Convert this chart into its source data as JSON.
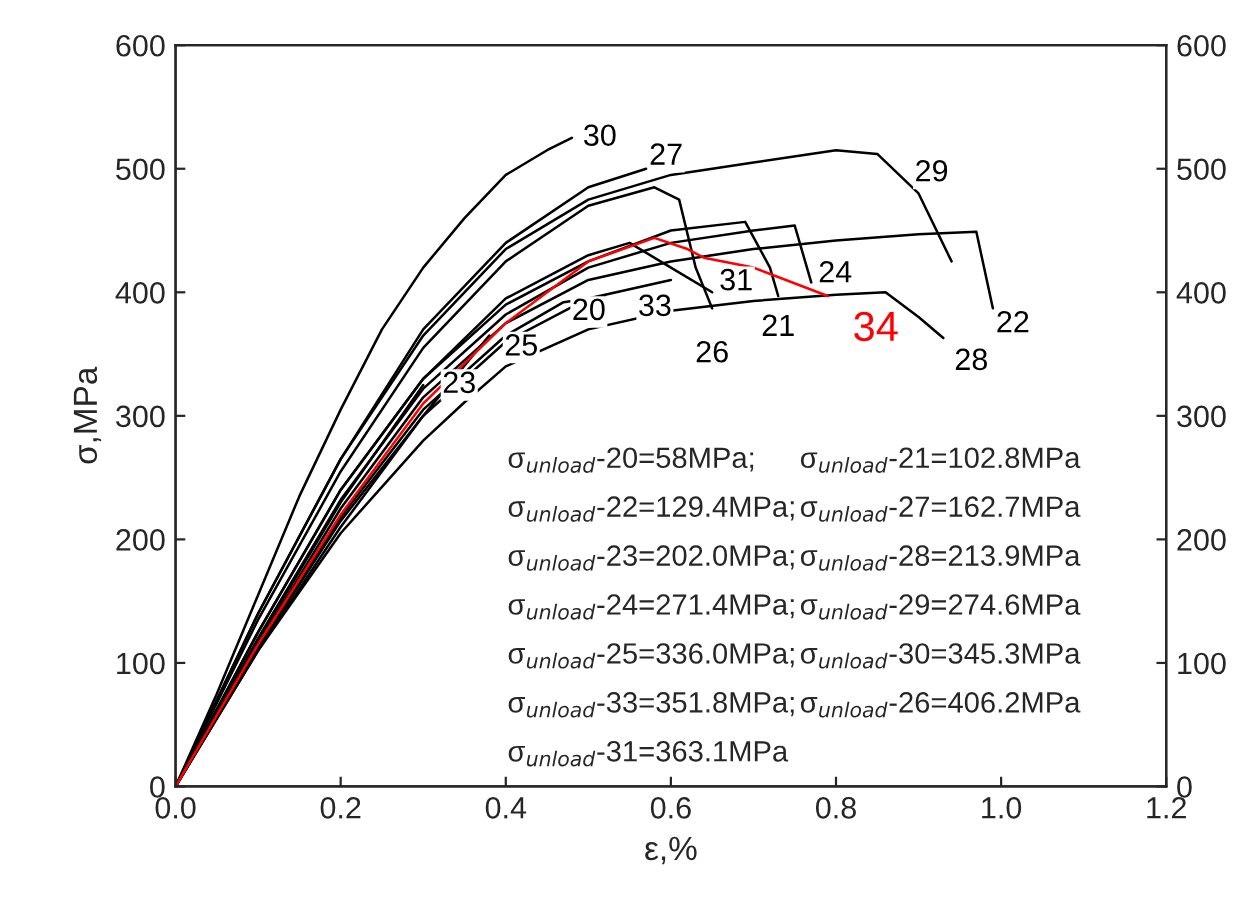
{
  "chart_data": {
    "type": "line",
    "xlabel": "ε,%",
    "ylabel": "σ,MPa",
    "xlim": [
      0,
      1.2
    ],
    "xticks": [
      {
        "value": 0,
        "label": "0.0"
      },
      {
        "value": 0.2,
        "label": "0.2"
      },
      {
        "value": 0.4,
        "label": "0.4"
      },
      {
        "value": 0.6,
        "label": "0.6"
      },
      {
        "value": 0.8,
        "label": "0.8"
      },
      {
        "value": 1.0,
        "label": "1.0"
      },
      {
        "value": 1.2,
        "label": "1.2"
      }
    ],
    "ylim": [
      0,
      600
    ],
    "yticks": [
      0,
      100,
      200,
      300,
      400,
      500,
      600
    ],
    "y2lim": [
      0,
      600
    ],
    "y2ticks": [
      0,
      100,
      200,
      300,
      400,
      500,
      600
    ],
    "grid": false,
    "legend": false,
    "marker": "none",
    "line_style": "solid",
    "series": [
      {
        "name": "30",
        "color": "#000000",
        "x": [
          0,
          0.05,
          0.1,
          0.15,
          0.2,
          0.25,
          0.3,
          0.35,
          0.4,
          0.45,
          0.48
        ],
        "values": [
          0,
          75,
          155,
          235,
          305,
          370,
          420,
          460,
          495,
          515,
          525
        ]
      },
      {
        "name": "27",
        "color": "#000000",
        "x": [
          0,
          0.1,
          0.2,
          0.3,
          0.4,
          0.5,
          0.57
        ],
        "values": [
          0,
          140,
          265,
          370,
          440,
          485,
          500
        ]
      },
      {
        "name": "29",
        "color": "#000000",
        "x": [
          0,
          0.1,
          0.2,
          0.3,
          0.4,
          0.5,
          0.6,
          0.7,
          0.8,
          0.85,
          0.9,
          0.94
        ],
        "values": [
          0,
          140,
          265,
          365,
          435,
          475,
          495,
          505,
          515,
          512,
          480,
          425
        ]
      },
      {
        "name": "26",
        "color": "#000000",
        "x": [
          0,
          0.1,
          0.2,
          0.3,
          0.4,
          0.5,
          0.58,
          0.61,
          0.63,
          0.65
        ],
        "values": [
          0,
          135,
          255,
          355,
          425,
          470,
          485,
          475,
          420,
          387
        ]
      },
      {
        "name": "21",
        "color": "#000000",
        "x": [
          0,
          0.1,
          0.2,
          0.3,
          0.4,
          0.5,
          0.6,
          0.69,
          0.72,
          0.73
        ],
        "values": [
          0,
          125,
          240,
          330,
          390,
          425,
          450,
          457,
          420,
          397
        ]
      },
      {
        "name": "24",
        "color": "#000000",
        "x": [
          0,
          0.1,
          0.2,
          0.3,
          0.4,
          0.5,
          0.6,
          0.7,
          0.75,
          0.77
        ],
        "values": [
          0,
          120,
          232,
          322,
          382,
          420,
          440,
          450,
          454,
          408
        ]
      },
      {
        "name": "22",
        "color": "#000000",
        "x": [
          0,
          0.1,
          0.2,
          0.3,
          0.4,
          0.5,
          0.6,
          0.7,
          0.8,
          0.9,
          0.97,
          0.99
        ],
        "values": [
          0,
          115,
          225,
          315,
          375,
          410,
          425,
          435,
          442,
          447,
          449,
          387
        ]
      },
      {
        "name": "31",
        "color": "#000000",
        "x": [
          0,
          0.1,
          0.2,
          0.3,
          0.4,
          0.5,
          0.55,
          0.6,
          0.65
        ],
        "values": [
          0,
          125,
          240,
          330,
          395,
          430,
          440,
          420,
          400
        ]
      },
      {
        "name": "33",
        "color": "#000000",
        "x": [
          0,
          0.1,
          0.2,
          0.3,
          0.4,
          0.5,
          0.6
        ],
        "values": [
          0,
          112,
          215,
          300,
          360,
          395,
          410
        ]
      },
      {
        "name": "20",
        "color": "#000000",
        "x": [
          0,
          0.1,
          0.2,
          0.3,
          0.4,
          0.47,
          0.52
        ],
        "values": [
          0,
          112,
          218,
          305,
          365,
          392,
          397
        ]
      },
      {
        "name": "25",
        "color": "#000000",
        "x": [
          0,
          0.1,
          0.2,
          0.3,
          0.38
        ],
        "values": [
          0,
          110,
          210,
          300,
          365
        ]
      },
      {
        "name": "23",
        "color": "#000000",
        "x": [
          0,
          0.1,
          0.2,
          0.3
        ],
        "values": [
          0,
          118,
          230,
          325
        ]
      },
      {
        "name": "28",
        "color": "#000000",
        "x": [
          0,
          0.1,
          0.2,
          0.3,
          0.35,
          0.4,
          0.5,
          0.6,
          0.7,
          0.8,
          0.86,
          0.9,
          0.93
        ],
        "values": [
          0,
          110,
          205,
          280,
          311,
          340,
          370,
          385,
          393,
          398,
          400,
          380,
          363
        ]
      },
      {
        "name": "34",
        "color": "#ff0000",
        "x": [
          0,
          0.1,
          0.2,
          0.3,
          0.4,
          0.5,
          0.58,
          0.62,
          0.64,
          0.7,
          0.79
        ],
        "values": [
          0,
          115,
          220,
          310,
          375,
          425,
          444,
          435,
          428,
          420,
          397
        ]
      }
    ],
    "annotations": [
      "σ$_{unload}$-20=58MPa;",
      "σ$_{unload}$-21=102.8MPa",
      "σ$_{unload}$-22=129.4MPa;",
      "σ$_{unload}$-27=162.7MPa",
      "σ$_{unload}$-23=202.0MPa;",
      "σ$_{unload}$-28=213.9MPa",
      "σ$_{unload}$-24=271.4MPa;",
      "σ$_{unload}$-29=274.6MPa",
      "σ$_{unload}$-25=336.0MPa;",
      "σ$_{unload}$-30=345.3MPa",
      "σ$_{unload}$-33=351.8MPa;",
      "σ$_{unload}$-26=406.2MPa",
      "σ$_{unload}$-31=363.1MPa"
    ]
  }
}
